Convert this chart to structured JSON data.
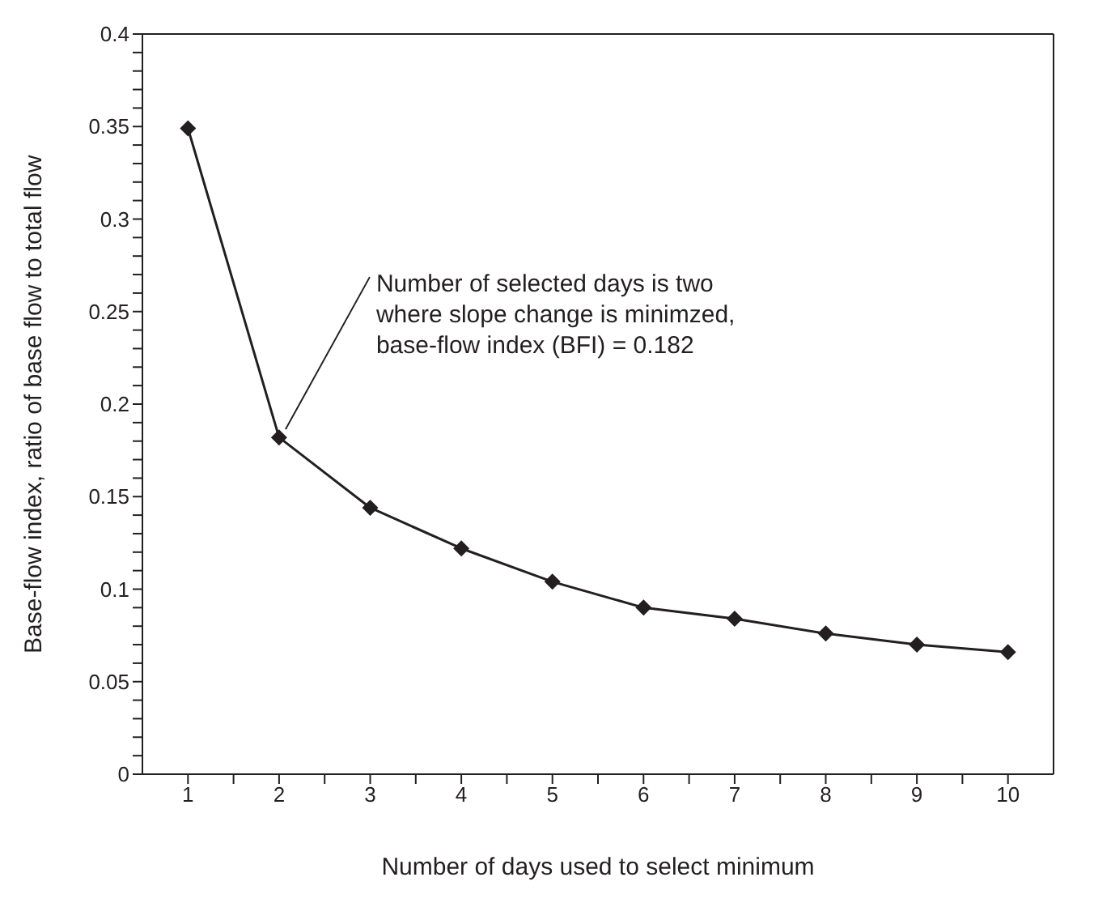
{
  "chart_data": {
    "type": "line",
    "xlabel": "Number of days used to select minimum",
    "ylabel": "Base-flow index, ratio of base flow to total flow",
    "x": [
      1,
      2,
      3,
      4,
      5,
      6,
      7,
      8,
      9,
      10
    ],
    "series": [
      {
        "color": "#231f20",
        "values": [
          0.349,
          0.182,
          0.144,
          0.122,
          0.104,
          0.09,
          0.084,
          0.076,
          0.07,
          0.066
        ]
      }
    ],
    "marker": "diamond",
    "line_style": "solid",
    "grid": false,
    "legend": false,
    "xlim": [
      0.5,
      10.5
    ],
    "xticks": [
      1,
      {
        "value": 1.5,
        "label": null
      },
      2,
      {
        "value": 2.5,
        "label": null
      },
      3,
      {
        "value": 3.5,
        "label": null
      },
      4,
      {
        "value": 4.5,
        "label": null
      },
      5,
      {
        "value": 5.5,
        "label": null
      },
      6,
      {
        "value": 6.5,
        "label": null
      },
      7,
      {
        "value": 7.5,
        "label": null
      },
      8,
      {
        "value": 8.5,
        "label": null
      },
      9,
      {
        "value": 9.5,
        "label": null
      },
      10
    ],
    "ylim": [
      0,
      0.4
    ],
    "yticks": [
      0,
      {
        "value": 0.01,
        "label": null
      },
      {
        "value": 0.02,
        "label": null
      },
      {
        "value": 0.03,
        "label": null
      },
      {
        "value": 0.04,
        "label": null
      },
      0.05,
      {
        "value": 0.06,
        "label": null
      },
      {
        "value": 0.07,
        "label": null
      },
      {
        "value": 0.08,
        "label": null
      },
      {
        "value": 0.09,
        "label": null
      },
      0.1,
      {
        "value": 0.11,
        "label": null
      },
      {
        "value": 0.12,
        "label": null
      },
      {
        "value": 0.13,
        "label": null
      },
      {
        "value": 0.14,
        "label": null
      },
      0.15,
      {
        "value": 0.16,
        "label": null
      },
      {
        "value": 0.17,
        "label": null
      },
      {
        "value": 0.18,
        "label": null
      },
      {
        "value": 0.19,
        "label": null
      },
      0.2,
      {
        "value": 0.21,
        "label": null
      },
      {
        "value": 0.22,
        "label": null
      },
      {
        "value": 0.23,
        "label": null
      },
      {
        "value": 0.24,
        "label": null
      },
      0.25,
      {
        "value": 0.26,
        "label": null
      },
      {
        "value": 0.27,
        "label": null
      },
      {
        "value": 0.28,
        "label": null
      },
      {
        "value": 0.29,
        "label": null
      },
      0.3,
      {
        "value": 0.31,
        "label": null
      },
      {
        "value": 0.32,
        "label": null
      },
      {
        "value": 0.33,
        "label": null
      },
      {
        "value": 0.34,
        "label": null
      },
      0.35,
      {
        "value": 0.36,
        "label": null
      },
      {
        "value": 0.37,
        "label": null
      },
      {
        "value": 0.38,
        "label": null
      },
      {
        "value": 0.39,
        "label": null
      },
      0.4
    ],
    "annotations": [
      {
        "text": "Number of selected days is two\nwhere slope change is minimzed,\nbase-flow index (BFI) = 0.182",
        "x": 2,
        "y": 0.182
      }
    ]
  }
}
